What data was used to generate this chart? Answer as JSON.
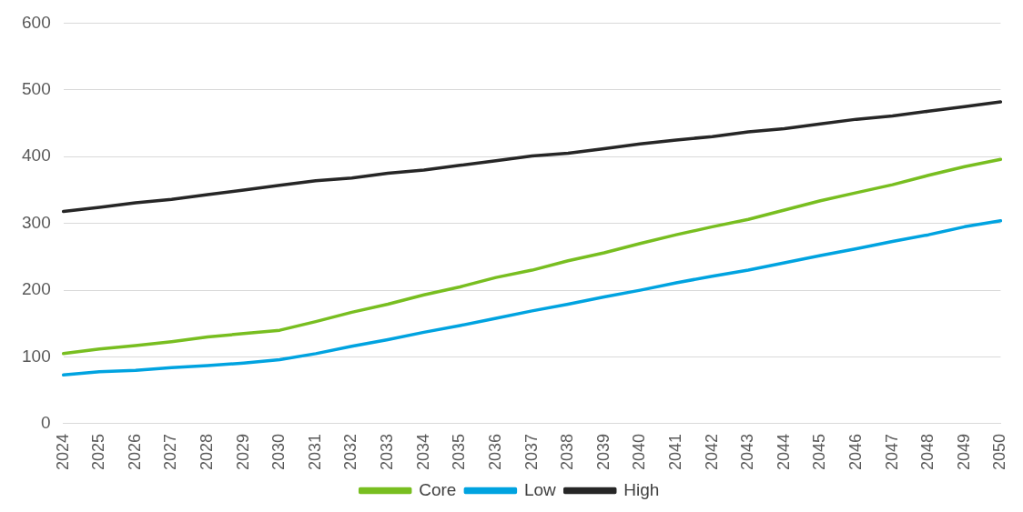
{
  "chart_data": {
    "type": "line",
    "categories": [
      "2024",
      "2025",
      "2026",
      "2027",
      "2028",
      "2029",
      "2030",
      "2031",
      "2032",
      "2033",
      "2034",
      "2035",
      "2036",
      "2037",
      "2038",
      "2039",
      "2040",
      "2041",
      "2042",
      "2043",
      "2044",
      "2045",
      "2046",
      "2047",
      "2048",
      "2049",
      "2050"
    ],
    "series": [
      {
        "name": "Core",
        "color": "#78be20",
        "values": [
          105,
          112,
          117,
          123,
          130,
          135,
          140,
          153,
          167,
          179,
          193,
          205,
          219,
          230,
          244,
          256,
          270,
          283,
          295,
          306,
          320,
          334,
          346,
          358,
          372,
          385,
          396
        ]
      },
      {
        "name": "Low",
        "color": "#00a3e0",
        "values": [
          73,
          78,
          80,
          84,
          87,
          91,
          96,
          105,
          116,
          126,
          137,
          147,
          158,
          169,
          179,
          190,
          200,
          211,
          221,
          230,
          241,
          252,
          262,
          273,
          283,
          295,
          304
        ]
      },
      {
        "name": "High",
        "color": "#262626",
        "values": [
          318,
          324,
          331,
          336,
          343,
          350,
          357,
          364,
          368,
          375,
          380,
          387,
          394,
          401,
          405,
          412,
          419,
          425,
          430,
          437,
          442,
          449,
          456,
          461,
          468,
          475,
          482
        ]
      }
    ],
    "ylim": [
      0,
      600
    ],
    "yticks": [
      0,
      100,
      200,
      300,
      400,
      500,
      600
    ],
    "grid": "y",
    "legend": "bottom",
    "marker": "none",
    "line_style": "solid"
  }
}
